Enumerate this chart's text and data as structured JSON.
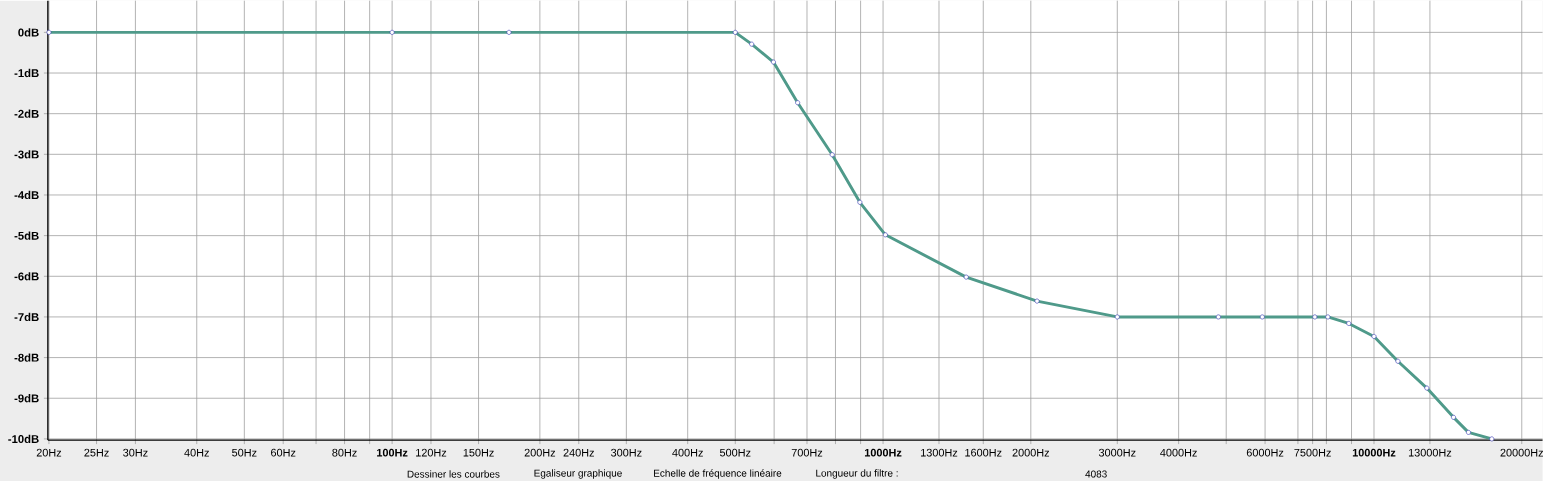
{
  "chart_data": {
    "type": "line",
    "log": "x",
    "grid": true,
    "marker": "circle",
    "line_style": "solid",
    "xlim": [
      19.9,
      22050
    ],
    "ylim": [
      -10.03,
      0.78
    ],
    "xticks": [
      {
        "value": 20,
        "label": "20Hz"
      },
      {
        "value": 25,
        "label": "25Hz"
      },
      {
        "value": 30,
        "label": "30Hz"
      },
      {
        "value": 40,
        "label": "40Hz"
      },
      {
        "value": 50,
        "label": "50Hz"
      },
      {
        "value": 60,
        "label": "60Hz"
      },
      {
        "value": 70,
        "label": null
      },
      {
        "value": 80,
        "label": "80Hz"
      },
      {
        "value": 90,
        "label": null
      },
      {
        "value": 100,
        "label": "100Hz"
      },
      {
        "value": 120,
        "label": "120Hz"
      },
      {
        "value": 150,
        "label": "150Hz"
      },
      {
        "value": 200,
        "label": "200Hz"
      },
      {
        "value": 240,
        "label": "240Hz"
      },
      {
        "value": 300,
        "label": "300Hz"
      },
      {
        "value": 400,
        "label": "400Hz"
      },
      {
        "value": 500,
        "label": "500Hz"
      },
      {
        "value": 600,
        "label": null
      },
      {
        "value": 700,
        "label": "700Hz"
      },
      {
        "value": 800,
        "label": null
      },
      {
        "value": 900,
        "label": null
      },
      {
        "value": 1000,
        "label": "1000Hz"
      },
      {
        "value": 1300,
        "label": "1300Hz"
      },
      {
        "value": 1600,
        "label": "1600Hz"
      },
      {
        "value": 2000,
        "label": "2000Hz"
      },
      {
        "value": 3000,
        "label": "3000Hz"
      },
      {
        "value": 4000,
        "label": "4000Hz"
      },
      {
        "value": 5000,
        "label": null
      },
      {
        "value": 6000,
        "label": "6000Hz"
      },
      {
        "value": 7000,
        "label": null
      },
      {
        "value": 7500,
        "label": "7500Hz"
      },
      {
        "value": 8000,
        "label": null
      },
      {
        "value": 9000,
        "label": null
      },
      {
        "value": 10000,
        "label": "10000Hz"
      },
      {
        "value": 13000,
        "label": "13000Hz"
      },
      {
        "value": 20000,
        "label": "20000Hz"
      }
    ],
    "yticks": [
      {
        "value": 0,
        "label": "0dB"
      },
      {
        "value": -1,
        "label": "-1dB"
      },
      {
        "value": -2,
        "label": "-2dB"
      },
      {
        "value": -3,
        "label": "-3dB"
      },
      {
        "value": -4,
        "label": "-4dB"
      },
      {
        "value": -5,
        "label": "-5dB"
      },
      {
        "value": -6,
        "label": "-6dB"
      },
      {
        "value": -7,
        "label": "-7dB"
      },
      {
        "value": -8,
        "label": "-8dB"
      },
      {
        "value": -9,
        "label": "-9dB"
      },
      {
        "value": -10,
        "label": "-10dB"
      }
    ],
    "x": [
      20,
      100,
      173,
      500,
      540,
      598,
      670,
      788,
      897,
      1011,
      1477,
      2059,
      3000,
      4820,
      5923,
      7578,
      8054,
      8885,
      10000,
      11187,
      12814,
      14521,
      15575,
      17375
    ],
    "series": [
      {
        "color": "#4f9a8a",
        "values": [
          0,
          0,
          0,
          0,
          -0.29,
          -0.73,
          -1.73,
          -3.01,
          -4.18,
          -4.98,
          -6.02,
          -6.61,
          -7.0,
          -7.0,
          -7.0,
          -7.0,
          -7.0,
          -7.16,
          -7.48,
          -8.09,
          -8.75,
          -9.47,
          -9.84,
          -10.0
        ]
      }
    ],
    "annotations": [
      "Dessiner les courbes",
      "Egaliseur graphique",
      "Echelle de fréquence linéaire",
      "Longueur du filtre :",
      "4083"
    ]
  }
}
